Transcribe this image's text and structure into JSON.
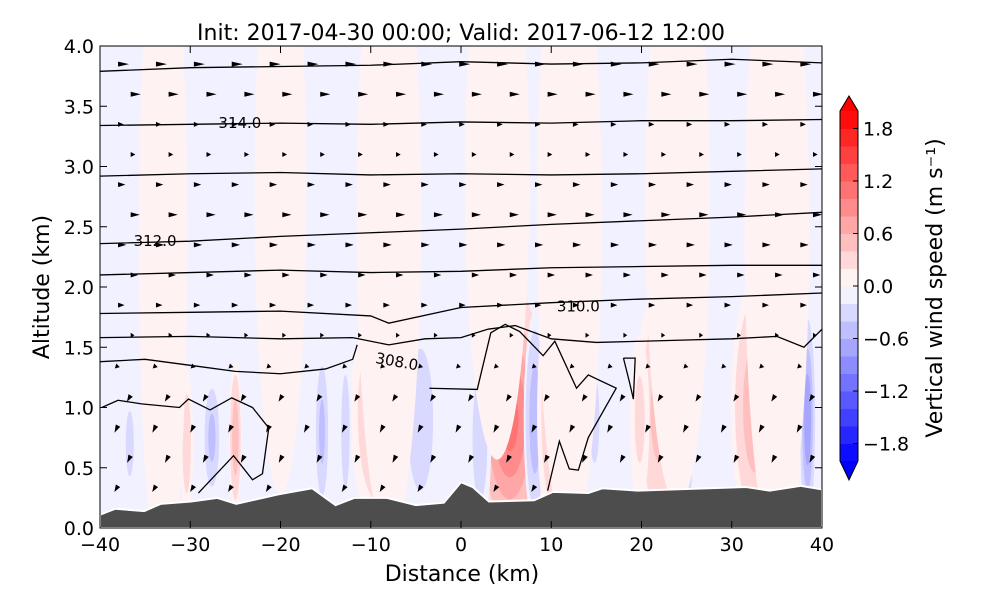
{
  "chart_data": {
    "type": "contourf",
    "title": "Init: 2017-04-30 00:00; Valid: 2017-06-12 12:00",
    "xlabel": "Distance (km)",
    "ylabel": "Altitude (km)",
    "xlim": [
      -40,
      40
    ],
    "ylim": [
      0,
      4
    ],
    "xticks": [
      "−40",
      "−30",
      "−20",
      "−10",
      "0",
      "10",
      "20",
      "30",
      "40"
    ],
    "xtick_values": [
      -40,
      -30,
      -20,
      -10,
      0,
      10,
      20,
      30,
      40
    ],
    "yticks": [
      "0.0",
      "0.5",
      "1.0",
      "1.5",
      "2.0",
      "2.5",
      "3.0",
      "3.5",
      "4.0"
    ],
    "ytick_values": [
      0,
      0.5,
      1,
      1.5,
      2,
      2.5,
      3,
      3.5,
      4
    ],
    "colorbar": {
      "label": "Vertical wind speed (m s⁻¹)",
      "min": -2,
      "max": 2,
      "step": 0.2,
      "ticks": [
        "1.8",
        "1.2",
        "0.6",
        "0.0",
        "−0.6",
        "−1.2",
        "−1.8"
      ],
      "tick_values": [
        1.8,
        1.2,
        0.6,
        0,
        -0.6,
        -1.2,
        -1.8
      ],
      "extend": "both"
    },
    "terrain_color": "#4d4d4d",
    "terrain": {
      "x": [
        -40,
        -38.3,
        -35.1,
        -33.3,
        -29.9,
        -27,
        -24.9,
        -20.2,
        -16.5,
        -13.9,
        -11.8,
        -8.2,
        -5,
        -1.9,
        0,
        1.3,
        3.1,
        8.1,
        10.2,
        14.1,
        15.7,
        19.6,
        31.6,
        34.2,
        37.6,
        40
      ],
      "z": [
        0.11,
        0.16,
        0.14,
        0.2,
        0.22,
        0.25,
        0.2,
        0.28,
        0.33,
        0.19,
        0.25,
        0.25,
        0.19,
        0.21,
        0.38,
        0.34,
        0.22,
        0.23,
        0.3,
        0.29,
        0.33,
        0.31,
        0.34,
        0.31,
        0.35,
        0.32
      ]
    },
    "w_features": [
      {
        "x": 5.4,
        "z": 0.9,
        "sx": 2.2,
        "sz": 0.6,
        "w": 1.1
      },
      {
        "x": -9,
        "z": 0.95,
        "sx": 1.8,
        "sz": 0.55,
        "w": 0.5
      },
      {
        "x": -4.5,
        "z": 0.9,
        "sx": 1.2,
        "sz": 0.5,
        "w": -0.4
      },
      {
        "x": 8.2,
        "z": 0.9,
        "sx": 0.7,
        "sz": 0.5,
        "w": -0.6
      },
      {
        "x": 10.4,
        "z": 0.95,
        "sx": 1.1,
        "sz": 0.6,
        "w": 0.5
      },
      {
        "x": 22,
        "z": 0.95,
        "sx": 1.5,
        "sz": 0.6,
        "w": 0.5
      },
      {
        "x": 24.5,
        "z": 0.9,
        "sx": 0.7,
        "sz": 0.6,
        "w": -0.9
      },
      {
        "x": 32.6,
        "z": 1.0,
        "sx": 1.5,
        "sz": 0.6,
        "w": 0.6
      },
      {
        "x": 34.8,
        "z": 0.9,
        "sx": 0.5,
        "sz": 0.5,
        "w": -0.5
      },
      {
        "x": 36.5,
        "z": 0.85,
        "sx": 0.7,
        "sz": 0.4,
        "w": 0.5
      },
      {
        "x": 38.4,
        "z": 0.9,
        "sx": 0.5,
        "sz": 0.5,
        "w": -0.8
      },
      {
        "x": -25,
        "z": 0.75,
        "sx": 0.4,
        "sz": 0.35,
        "w": 0.6
      },
      {
        "x": -27.6,
        "z": 0.75,
        "sx": 0.6,
        "sz": 0.3,
        "w": -0.5
      },
      {
        "x": -30.4,
        "z": 0.7,
        "sx": 0.4,
        "sz": 0.35,
        "w": 0.4
      },
      {
        "x": -36.7,
        "z": 0.7,
        "sx": 0.5,
        "sz": 0.3,
        "w": -0.3
      },
      {
        "x": -15.4,
        "z": 0.8,
        "sx": 0.5,
        "sz": 0.4,
        "w": -0.5
      },
      {
        "x": -12.8,
        "z": 0.8,
        "sx": 0.4,
        "sz": 0.4,
        "w": -0.4
      },
      {
        "x": 19.8,
        "z": 0.9,
        "sx": 0.6,
        "sz": 0.4,
        "w": 0.3
      },
      {
        "x": 14.8,
        "z": 0.9,
        "sx": 0.6,
        "sz": 0.4,
        "w": -0.3
      },
      {
        "x": 2.1,
        "z": 0.75,
        "sx": 0.7,
        "sz": 0.45,
        "w": -0.4
      },
      {
        "x": -33,
        "z": 2.4,
        "sx": 1.5,
        "sz": 1.6,
        "w": 0.15
      },
      {
        "x": -20,
        "z": 2.8,
        "sx": 1.6,
        "sz": 1.4,
        "w": 0.15
      },
      {
        "x": -8,
        "z": 2.6,
        "sx": 2,
        "sz": 1.5,
        "w": 0.15
      },
      {
        "x": 4,
        "z": 2.9,
        "sx": 2,
        "sz": 1.3,
        "w": 0.15
      },
      {
        "x": 12,
        "z": 2.6,
        "sx": 2,
        "sz": 1.5,
        "w": 0.15
      },
      {
        "x": 24,
        "z": 2.7,
        "sx": 2,
        "sz": 1.4,
        "w": 0.15
      },
      {
        "x": 35,
        "z": 2.5,
        "sx": 2,
        "sz": 1.5,
        "w": 0.15
      }
    ],
    "contours": [
      {
        "label": "",
        "x": [
          -40,
          -30,
          -20,
          -10,
          0,
          10,
          20,
          30,
          40
        ],
        "z": [
          3.79,
          3.82,
          3.83,
          3.84,
          3.87,
          3.85,
          3.86,
          3.89,
          3.86
        ]
      },
      {
        "label": "314.0",
        "lx": -24.5,
        "lz": 3.36,
        "x": [
          -40,
          -30,
          -20,
          -10,
          0,
          10,
          20,
          30,
          40
        ],
        "z": [
          3.34,
          3.35,
          3.36,
          3.35,
          3.37,
          3.36,
          3.38,
          3.38,
          3.39
        ]
      },
      {
        "label": "",
        "x": [
          -40,
          -30,
          -20,
          -10,
          0,
          10,
          20,
          30,
          40
        ],
        "z": [
          2.92,
          2.94,
          2.95,
          2.93,
          2.94,
          2.93,
          2.94,
          2.96,
          2.98
        ]
      },
      {
        "label": "312.0",
        "lx": -33.9,
        "lz": 2.38,
        "x": [
          -40,
          -30,
          -20,
          -10,
          0,
          10,
          20,
          30,
          40
        ],
        "z": [
          2.36,
          2.38,
          2.42,
          2.45,
          2.48,
          2.52,
          2.55,
          2.58,
          2.62
        ]
      },
      {
        "label": "",
        "x": [
          -40,
          -30,
          -20,
          -10,
          0,
          10,
          20,
          30,
          40
        ],
        "z": [
          2.1,
          2.12,
          2.14,
          2.12,
          2.13,
          2.16,
          2.17,
          2.18,
          2.18
        ]
      },
      {
        "label": "310.0",
        "lx": 13,
        "lz": 1.84,
        "x": [
          -40,
          -30,
          -20,
          -10,
          -8,
          0,
          10,
          20,
          30,
          40
        ],
        "z": [
          1.78,
          1.79,
          1.8,
          1.76,
          1.7,
          1.83,
          1.87,
          1.9,
          1.92,
          1.95
        ]
      },
      {
        "label": "",
        "x": [
          -40,
          -30,
          -20,
          -12,
          -8,
          -4,
          0,
          3,
          6,
          10,
          15,
          20,
          25,
          30,
          35,
          38,
          40
        ],
        "z": [
          1.58,
          1.59,
          1.57,
          1.58,
          1.52,
          1.57,
          1.58,
          1.65,
          1.68,
          1.57,
          1.54,
          1.55,
          1.56,
          1.57,
          1.59,
          1.5,
          1.65
        ]
      },
      {
        "label": "308.0",
        "lx": -7.1,
        "lz": 1.38,
        "x": [
          -40,
          -35,
          -30,
          -25,
          -20,
          -15,
          -12,
          -11.5
        ],
        "z": [
          1.38,
          1.4,
          1.35,
          1.3,
          1.28,
          1.32,
          1.4,
          1.52
        ]
      },
      {
        "label": "",
        "x": [
          -3.5,
          1.8,
          3.3,
          4.9,
          6.5,
          9.1,
          10.4,
          12.8,
          14.1,
          17.2,
          14.1,
          13,
          12,
          10.9,
          9.6
        ],
        "z": [
          1.16,
          1.15,
          1.62,
          1.69,
          1.63,
          1.43,
          1.55,
          1.16,
          1.27,
          1.16,
          0.75,
          0.48,
          0.49,
          0.72,
          0.31
        ]
      },
      {
        "label": "",
        "x": [
          -39.8,
          -38,
          -35.4,
          -31.2,
          -30.2,
          -27.8,
          -25.4,
          -23.1,
          -21.3,
          -22,
          -23.1,
          -25.2,
          -29.1
        ],
        "z": [
          1.0,
          1.06,
          1.03,
          1.0,
          1.07,
          0.98,
          1.08,
          1.0,
          0.83,
          0.45,
          0.4,
          0.6,
          0.29
        ]
      },
      {
        "label": "",
        "x": [
          18,
          19.3,
          19.1,
          18.7,
          18
        ],
        "z": [
          1.41,
          1.41,
          1.07,
          1.2,
          1.41
        ]
      }
    ],
    "quiver": {
      "x_start": -38,
      "x_step": 4.2,
      "z": [
        3.85,
        3.6,
        3.35,
        3.1,
        2.85,
        2.6,
        2.35,
        2.1,
        1.85,
        1.6,
        1.35,
        1.1,
        0.85,
        0.6,
        0.35
      ],
      "u": [
        1,
        0.9,
        0.4,
        0.3,
        0.6,
        0.8,
        0.7,
        0.6,
        0.5,
        0.2,
        -0.2,
        -0.3,
        -0.3,
        -0.3,
        -0.3
      ],
      "v": [
        0,
        0,
        0,
        0,
        0,
        0,
        0,
        0,
        0,
        0,
        -0.2,
        -0.5,
        -0.6,
        -0.6,
        -0.5
      ]
    }
  }
}
